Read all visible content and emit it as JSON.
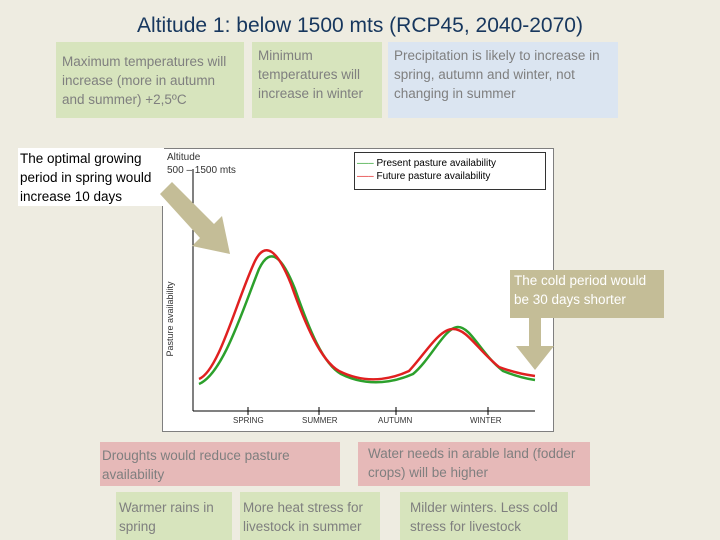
{
  "title": "Altitude 1: below 1500 mts (RCP45, 2040-2070)",
  "boxes": {
    "max_temp": "Maximum temperatures will increase (more in autumn and summer) +2,5ºC",
    "min_temp": "Minimum temperatures will increase in winter",
    "precip": "Precipitation is likely to increase in spring, autumn and winter, not changing in summer",
    "growing": "The optimal growing period in spring would increase 10 days",
    "cold": "The cold period would be 30 days shorter",
    "droughts": "Droughts would reduce pasture availability",
    "water": "Water needs in arable land (fodder crops) will be higher",
    "warmer": "Warmer rains in spring",
    "heat": "More heat stress for livestock in summer",
    "milder": "Milder winters. Less cold stress for livestock"
  },
  "chart": {
    "altitude_line1": "Altitude",
    "altitude_line2": "500 – 1500 mts",
    "ylabel": "Pasture availability",
    "legend": [
      {
        "name": "Present pasture availability",
        "color": "#2ca02c"
      },
      {
        "name": "Future pasture availability",
        "color": "#e02020"
      }
    ],
    "seasons": [
      "SPRING",
      "SUMMER",
      "AUTUMN",
      "WINTER"
    ]
  },
  "colors": {
    "arrow": "#c4bd97",
    "present": "#2ca02c",
    "future": "#e02020"
  }
}
